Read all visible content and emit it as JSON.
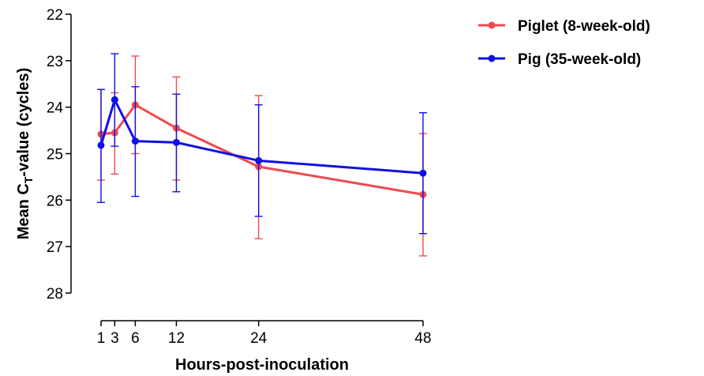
{
  "chart_data": {
    "type": "line",
    "xlabel": "Hours-post-inoculation",
    "ylabel": {
      "prefix": "Mean C",
      "subscript": "T",
      "suffix": "-value (cycles)"
    },
    "x_ticks": [
      1,
      3,
      6,
      12,
      24,
      48
    ],
    "x_tick_labels": [
      "1",
      "3",
      "6",
      "12",
      "24",
      "48"
    ],
    "y_ticks": [
      22,
      23,
      24,
      25,
      26,
      27,
      28
    ],
    "y_tick_labels": [
      "22",
      "23",
      "24",
      "25",
      "26",
      "27",
      "28"
    ],
    "xlim": [
      0,
      48
    ],
    "ylim": [
      22,
      28
    ],
    "y_inverted": true,
    "grid": false,
    "legend_position": "top-right",
    "series": [
      {
        "name": "Piglet (8-week-old)",
        "color": "#f04a50",
        "x": [
          1,
          3,
          6,
          12,
          24,
          48
        ],
        "y": [
          24.58,
          24.55,
          23.95,
          24.45,
          25.28,
          25.88
        ],
        "error_low": [
          25.57,
          25.44,
          25.0,
          25.57,
          26.83,
          27.2
        ],
        "error_high": [
          23.62,
          23.69,
          22.9,
          23.35,
          23.75,
          24.57
        ]
      },
      {
        "name": "Pig (35-week-old)",
        "color": "#1010e6",
        "x": [
          1,
          3,
          6,
          12,
          24,
          48
        ],
        "y": [
          24.82,
          23.84,
          24.73,
          24.76,
          25.15,
          25.42
        ],
        "error_low": [
          26.05,
          24.84,
          25.92,
          25.82,
          26.35,
          26.72
        ],
        "error_high": [
          23.62,
          22.85,
          23.56,
          23.72,
          23.95,
          24.12
        ]
      }
    ]
  }
}
